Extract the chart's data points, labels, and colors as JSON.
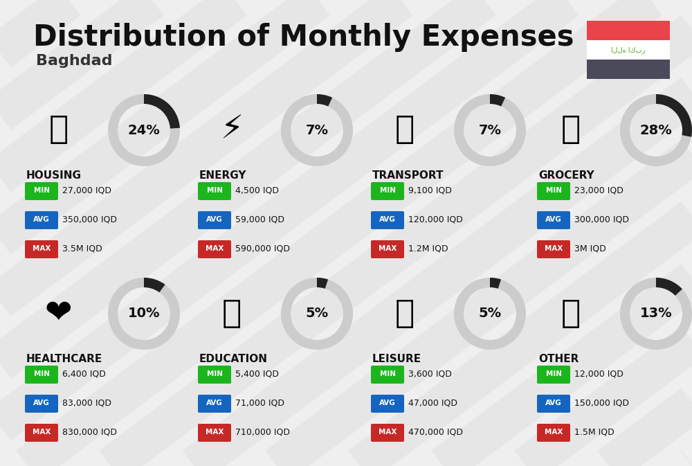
{
  "title": "Distribution of Monthly Expenses",
  "subtitle": "Baghdad",
  "bg_color": "#efefef",
  "categories": [
    {
      "name": "HOUSING",
      "pct": 24,
      "min_val": "27,000 IQD",
      "avg_val": "350,000 IQD",
      "max_val": "3.5M IQD",
      "col": 0,
      "row": 0
    },
    {
      "name": "ENERGY",
      "pct": 7,
      "min_val": "4,500 IQD",
      "avg_val": "59,000 IQD",
      "max_val": "590,000 IQD",
      "col": 1,
      "row": 0
    },
    {
      "name": "TRANSPORT",
      "pct": 7,
      "min_val": "9,100 IQD",
      "avg_val": "120,000 IQD",
      "max_val": "1.2M IQD",
      "col": 2,
      "row": 0
    },
    {
      "name": "GROCERY",
      "pct": 28,
      "min_val": "23,000 IQD",
      "avg_val": "300,000 IQD",
      "max_val": "3M IQD",
      "col": 3,
      "row": 0
    },
    {
      "name": "HEALTHCARE",
      "pct": 10,
      "min_val": "6,400 IQD",
      "avg_val": "83,000 IQD",
      "max_val": "830,000 IQD",
      "col": 0,
      "row": 1
    },
    {
      "name": "EDUCATION",
      "pct": 5,
      "min_val": "5,400 IQD",
      "avg_val": "71,000 IQD",
      "max_val": "710,000 IQD",
      "col": 1,
      "row": 1
    },
    {
      "name": "LEISURE",
      "pct": 5,
      "min_val": "3,600 IQD",
      "avg_val": "47,000 IQD",
      "max_val": "470,000 IQD",
      "col": 2,
      "row": 1
    },
    {
      "name": "OTHER",
      "pct": 13,
      "min_val": "12,000 IQD",
      "avg_val": "150,000 IQD",
      "max_val": "1.5M IQD",
      "col": 3,
      "row": 1
    }
  ],
  "color_min": "#1db51d",
  "color_avg": "#1565c0",
  "color_max": "#c62828",
  "ring_fg_color": "#222222",
  "ring_bg_color": "#cccccc",
  "flag_red": "#e8444a",
  "flag_white": "#ffffff",
  "flag_black": "#4a4a5a",
  "flag_text_color": "#5a9e1a",
  "diag_color": "#e0e0e0",
  "title_color": "#111111",
  "subtitle_color": "#333333",
  "name_color": "#111111",
  "val_color": "#111111"
}
